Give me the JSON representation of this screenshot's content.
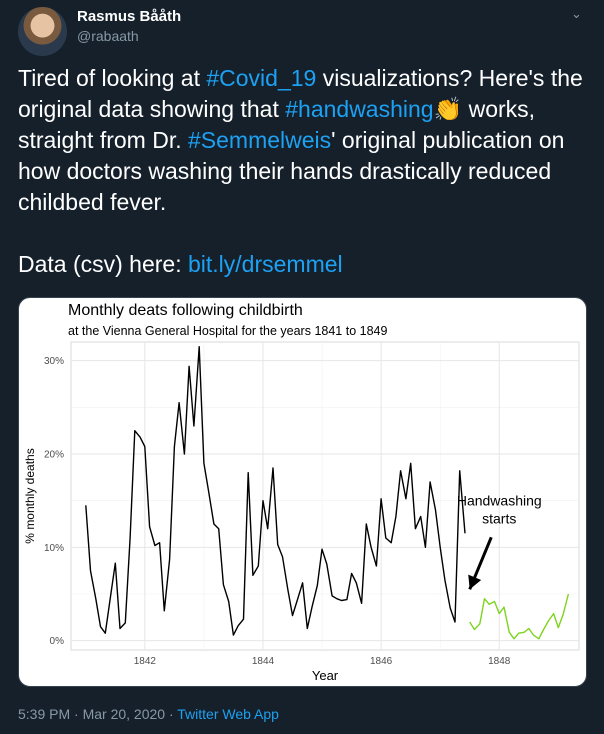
{
  "user": {
    "name": "Rasmus Bååth",
    "handle": "@rabaath"
  },
  "tweet": {
    "text1": "Tired of looking at ",
    "tag1": "#Covid_19",
    "text2": " visualizations? Here's the original data showing that ",
    "tag2": "#handwashing",
    "emoji": "👏",
    "text3": " works, straight from Dr. ",
    "tag3": "#Semmelweis",
    "text4": "' original publication on how doctors washing their hands drastically reduced childbed fever.",
    "data_label": "Data (csv) here: ",
    "data_link": "bit.ly/drsemmel"
  },
  "footer": {
    "timestamp": "5:39 PM · Mar 20, 2020",
    "sep": " · ",
    "app": "Twitter Web App"
  },
  "icons": {
    "menu": "chevron-down-icon",
    "avatar": "profile-photo"
  },
  "colors": {
    "background": "#15202b",
    "accent": "#1da1f2",
    "secondary_text": "#8899a6",
    "before": "#000000",
    "after": "#7ed321"
  },
  "chart_data": {
    "type": "line",
    "title": "Monthly deats following childbirth",
    "subtitle": "at the Vienna General Hospital for the years 1841 to 1849",
    "xlabel": "Year",
    "ylabel": "% monthly deaths",
    "xlim": [
      1840.75,
      1849.35
    ],
    "ylim": [
      -1,
      32
    ],
    "x_ticks": [
      1842,
      1844,
      1846,
      1848
    ],
    "y_ticks": [
      {
        "value": 0,
        "label": "0%"
      },
      {
        "value": 10,
        "label": "10%"
      },
      {
        "value": 20,
        "label": "20%"
      },
      {
        "value": 30,
        "label": "30%"
      }
    ],
    "grid": true,
    "annotation": {
      "lines": [
        "Handwashing",
        "starts"
      ],
      "x": 1848.0,
      "y": 14.5,
      "arrow_to": [
        1847.5,
        5.5
      ]
    },
    "series": [
      {
        "color": "#000000",
        "x": [
          1841.0,
          1841.08,
          1841.17,
          1841.25,
          1841.33,
          1841.42,
          1841.5,
          1841.58,
          1841.67,
          1841.75,
          1841.83,
          1841.92,
          1842.0,
          1842.08,
          1842.17,
          1842.25,
          1842.33,
          1842.42,
          1842.5,
          1842.58,
          1842.67,
          1842.75,
          1842.83,
          1842.92,
          1843.0,
          1843.08,
          1843.17,
          1843.25,
          1843.33,
          1843.42,
          1843.5,
          1843.58,
          1843.67,
          1843.75,
          1843.83,
          1843.92,
          1844.0,
          1844.08,
          1844.17,
          1844.25,
          1844.33,
          1844.42,
          1844.5,
          1844.58,
          1844.67,
          1844.75,
          1844.83,
          1844.92,
          1845.0,
          1845.08,
          1845.17,
          1845.25,
          1845.33,
          1845.42,
          1845.5,
          1845.58,
          1845.67,
          1845.75,
          1845.83,
          1845.92,
          1846.0,
          1846.08,
          1846.17,
          1846.25,
          1846.33,
          1846.42,
          1846.5,
          1846.58,
          1846.67,
          1846.75,
          1846.83,
          1846.92,
          1847.0,
          1847.08,
          1847.17,
          1847.25,
          1847.33,
          1847.42
        ],
        "values": [
          14.5,
          7.5,
          4.5,
          1.5,
          0.8,
          4.8,
          8.3,
          1.3,
          1.9,
          11.0,
          22.5,
          21.8,
          20.8,
          12.2,
          10.2,
          10.5,
          3.2,
          8.7,
          20.8,
          25.5,
          20.0,
          29.4,
          23.0,
          31.5,
          19.0,
          16.0,
          12.5,
          12.0,
          6.0,
          4.2,
          0.6,
          1.6,
          2.3,
          18.0,
          7.0,
          8.0,
          15.0,
          12.0,
          18.5,
          10.3,
          9.0,
          5.5,
          2.7,
          4.3,
          6.2,
          1.3,
          3.6,
          5.9,
          9.8,
          8.2,
          4.8,
          4.5,
          4.3,
          4.4,
          7.2,
          6.2,
          4.0,
          12.5,
          10.0,
          8.0,
          15.2,
          11.0,
          10.5,
          13.3,
          18.2,
          15.2,
          19.0,
          12.0,
          13.3,
          10.0,
          17.0,
          14.0,
          10.0,
          6.5,
          3.5,
          2.0,
          18.2,
          11.5
        ]
      },
      {
        "color": "#7ed321",
        "x": [
          1847.5,
          1847.58,
          1847.67,
          1847.75,
          1847.83,
          1847.92,
          1848.0,
          1848.08,
          1848.17,
          1848.25,
          1848.33,
          1848.42,
          1848.5,
          1848.58,
          1848.67,
          1848.75,
          1848.83,
          1848.92,
          1849.0,
          1849.08,
          1849.17
        ],
        "values": [
          2.0,
          1.2,
          1.8,
          4.5,
          3.9,
          4.2,
          2.9,
          3.6,
          0.9,
          0.2,
          0.8,
          0.9,
          1.3,
          0.6,
          0.2,
          1.2,
          2.1,
          2.9,
          1.4,
          2.8,
          5.0
        ]
      }
    ]
  }
}
